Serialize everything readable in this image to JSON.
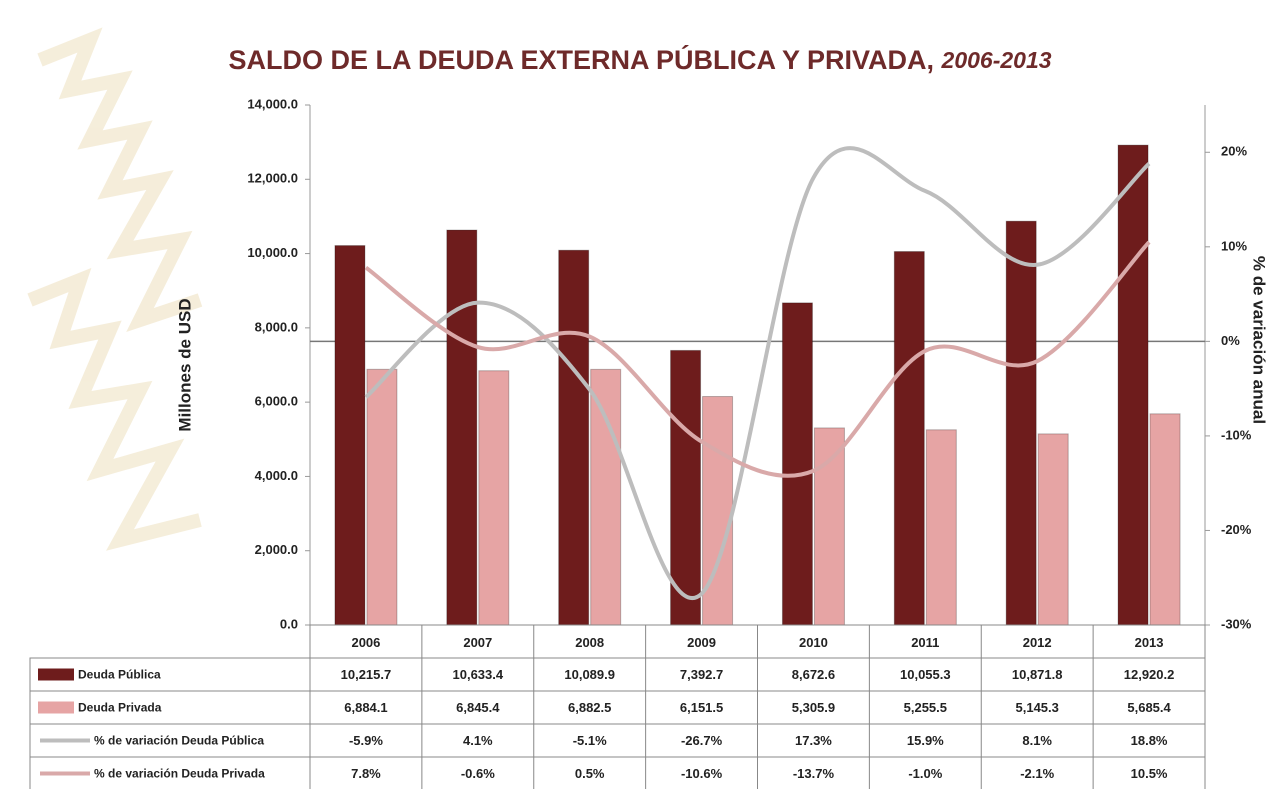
{
  "chart_data": {
    "type": "bar",
    "title": "SALDO DE LA DEUDA EXTERNA PÚBLICA Y PRIVADA,",
    "title_period": "2006-2013",
    "y_label": "Millones de USD",
    "y2_label": "% de variación anual",
    "categories": [
      "2006",
      "2007",
      "2008",
      "2009",
      "2010",
      "2011",
      "2012",
      "2013"
    ],
    "ylim": [
      0,
      14000
    ],
    "yticks": [
      {
        "value": 0,
        "label": "0.0"
      },
      {
        "value": 2000,
        "label": "2,000.0"
      },
      {
        "value": 4000,
        "label": "4,000.0"
      },
      {
        "value": 6000,
        "label": "6,000.0"
      },
      {
        "value": 8000,
        "label": "8,000.0"
      },
      {
        "value": 10000,
        "label": "10,000.0"
      },
      {
        "value": 12000,
        "label": "12,000.0"
      },
      {
        "value": 14000,
        "label": "14,000.0"
      }
    ],
    "y2lim": [
      -30,
      25
    ],
    "y2ticks": [
      {
        "value": -30,
        "label": "-30%"
      },
      {
        "value": -20,
        "label": "-20%"
      },
      {
        "value": -10,
        "label": "-10%"
      },
      {
        "value": 0,
        "label": "0%"
      },
      {
        "value": 10,
        "label": "10%"
      },
      {
        "value": 20,
        "label": "20%"
      }
    ],
    "series": [
      {
        "name": "Deuda Pública",
        "color": "#6e1c1c",
        "values": [
          10215.7,
          10633.4,
          10089.9,
          7392.7,
          8672.6,
          10055.3,
          10871.8,
          12920.2
        ],
        "value_labels": [
          "10,215.7",
          "10,633.4",
          "10,089.9",
          "7,392.7",
          "8,672.6",
          "10,055.3",
          "10,871.8",
          "12,920.2"
        ]
      },
      {
        "name": "Deuda Privada",
        "color": "#e6a4a4",
        "values": [
          6884.1,
          6845.4,
          6882.5,
          6151.5,
          5305.9,
          5255.5,
          5145.3,
          5685.4
        ],
        "value_labels": [
          "6,884.1",
          "6,845.4",
          "6,882.5",
          "6,151.5",
          "5,305.9",
          "5,255.5",
          "5,145.3",
          "5,685.4"
        ]
      },
      {
        "name": "% de variación Deuda Pública",
        "type": "line",
        "axis": "y2",
        "color": "#bdbdbd",
        "values": [
          -5.9,
          4.1,
          -5.1,
          -26.7,
          17.3,
          15.9,
          8.1,
          18.8
        ],
        "value_labels": [
          "-5.9%",
          "4.1%",
          "-5.1%",
          "-26.7%",
          "17.3%",
          "15.9%",
          "8.1%",
          "18.8%"
        ]
      },
      {
        "name": "% de variación Deuda Privada",
        "type": "line",
        "axis": "y2",
        "color": "#d9a9a9",
        "values": [
          7.8,
          -0.6,
          0.5,
          -10.6,
          -13.7,
          -1.0,
          -2.1,
          10.5
        ],
        "value_labels": [
          "7.8%",
          "-0.6%",
          "0.5%",
          "-10.6%",
          "-13.7%",
          "-1.0%",
          "-2.1%",
          "10.5%"
        ]
      }
    ]
  }
}
